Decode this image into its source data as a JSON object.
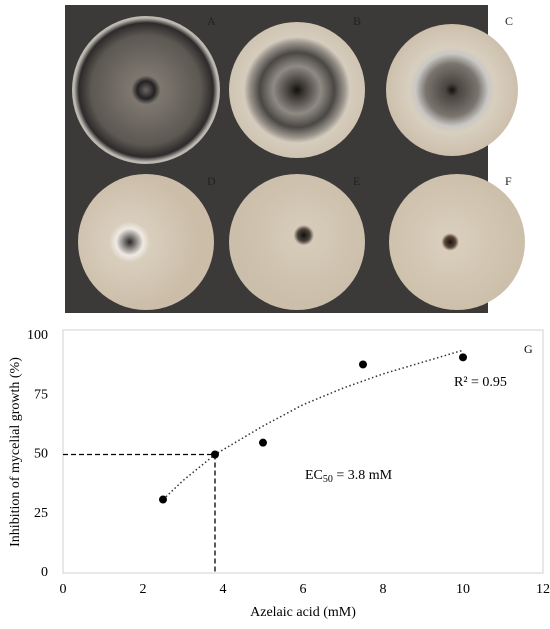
{
  "photo": {
    "labels": [
      "A",
      "B",
      "C",
      "D",
      "E",
      "F"
    ]
  },
  "chart_data": {
    "type": "scatter",
    "panel_label": "G",
    "x_label": "Azelaic acid (mM)",
    "y_label": "Inhibition of mycelial growth (%)",
    "x": [
      2.5,
      3.8,
      5,
      7.5,
      10
    ],
    "values": [
      31,
      50,
      55,
      88,
      91
    ],
    "color": "#000000",
    "xlim": [
      0,
      12
    ],
    "xticks": [
      0,
      2,
      4,
      6,
      8,
      10,
      12
    ],
    "ylim": [
      0,
      100
    ],
    "yticks": [
      0,
      25,
      50,
      75,
      100
    ],
    "trendline": {
      "x": [
        2.5,
        3,
        3.8,
        5,
        6,
        7,
        8,
        9,
        10
      ],
      "values": [
        31,
        39,
        50,
        62,
        71,
        78,
        84,
        89,
        94
      ]
    },
    "r2_label": "R² = 0.95",
    "ec50": {
      "x": 3.8,
      "y": 50,
      "prefix": "EC",
      "subscript": "50",
      "suffix": " = 3.8 mM"
    }
  }
}
